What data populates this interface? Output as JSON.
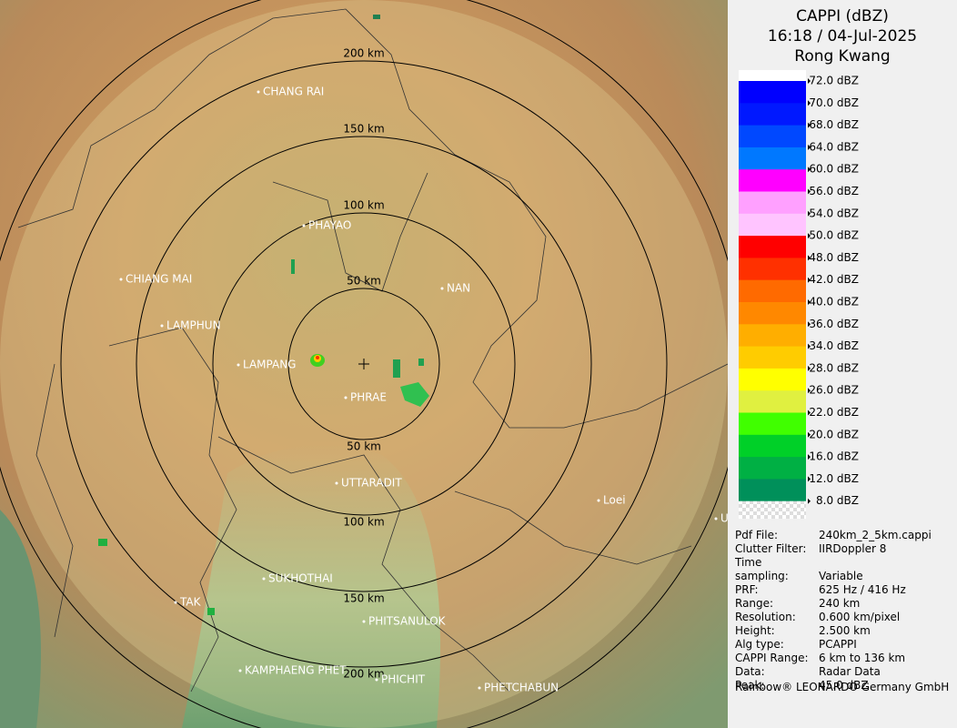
{
  "header": {
    "title": "CAPPI (dBZ)",
    "time": "16:18 / 04-Jul-2025",
    "station": "Rong Kwang"
  },
  "legend": {
    "labels": [
      "72.0 dBZ",
      "70.0 dBZ",
      "68.0 dBZ",
      "64.0 dBZ",
      "60.0 dBZ",
      "56.0 dBZ",
      "54.0 dBZ",
      "50.0 dBZ",
      "48.0 dBZ",
      "42.0 dBZ",
      "40.0 dBZ",
      "36.0 dBZ",
      "34.0 dBZ",
      "28.0 dBZ",
      "26.0 dBZ",
      "22.0 dBZ",
      "20.0 dBZ",
      "16.0 dBZ",
      "12.0 dBZ",
      "8.0 dBZ"
    ],
    "colors": [
      "#0000ff",
      "#0018ff",
      "#0048ff",
      "#0078ff",
      "#ff00ff",
      "#ffa0ff",
      "#ffc4ff",
      "#ff0000",
      "#ff3000",
      "#ff6a00",
      "#ff8800",
      "#ffae00",
      "#ffcc00",
      "#ffff00",
      "#e0f040",
      "#40ff00",
      "#00d028",
      "#00b044",
      "#00905a"
    ],
    "top_color": "#ffffff"
  },
  "info": [
    {
      "label": "Pdf File:",
      "value": "240km_2_5km.cappi"
    },
    {
      "label": "Clutter Filter:",
      "value": "IIRDoppler 8"
    },
    {
      "label": "Time sampling:",
      "value": "Variable"
    },
    {
      "label": "PRF:",
      "value": "625 Hz / 416 Hz"
    },
    {
      "label": "Range:",
      "value": "240 km"
    },
    {
      "label": "Resolution:",
      "value": "0.600 km/pixel"
    },
    {
      "label": "Height:",
      "value": "2.500 km"
    },
    {
      "label": "Alg type:",
      "value": "PCAPPI"
    },
    {
      "label": "CAPPI Range:",
      "value": "6 km to 136 km"
    },
    {
      "label": "Data:",
      "value": "Radar Data"
    },
    {
      "label": "Peak:",
      "value": "45.0 dBZ"
    }
  ],
  "footer": "Rainbow® LEONARDO Germany GmbH",
  "map": {
    "rings_top": [
      "50 km",
      "100 km",
      "150 km",
      "200 km"
    ],
    "rings_bottom": [
      "50 km",
      "100 km",
      "150 km",
      "200 km"
    ],
    "cities": [
      "CHANG RAI",
      "PHAYAO",
      "CHIANG MAI",
      "NAN",
      "LAMPHUN",
      "LAMPANG",
      "PHRAE",
      "UTTARADIT",
      "Loei",
      "U",
      "SUKHOTHAI",
      "TAK",
      "PHITSANULOK",
      "KAMPHAENG PHET",
      "PHICHIT",
      "PHETCHABUN"
    ]
  }
}
